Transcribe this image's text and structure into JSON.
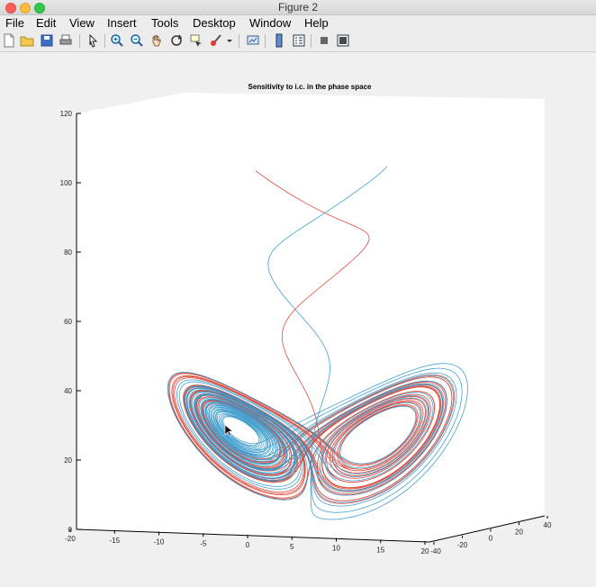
{
  "window": {
    "title": "Figure 2"
  },
  "menu": [
    "File",
    "Edit",
    "View",
    "Insert",
    "Tools",
    "Desktop",
    "Window",
    "Help"
  ],
  "toolbar": [
    "new-figure-icon",
    "open-folder-icon",
    "save-icon",
    "print-icon",
    "pointer-icon",
    "zoom-in-icon",
    "zoom-out-icon",
    "pan-hand-icon",
    "rotate-3d-icon",
    "data-cursor-icon",
    "brush-icon",
    "dropdown-arrow-icon",
    "link-plot-icon",
    "colorbar-icon",
    "legend-icon",
    "hide-plot-tools-icon",
    "show-plot-tools-icon"
  ],
  "chart_data": {
    "type": "line",
    "title": "Sensitivity to i.c. in the phase space",
    "z_ticks": [
      "0",
      "20",
      "40",
      "60",
      "80",
      "100",
      "120"
    ],
    "x_ticks": [
      "-20",
      "-15",
      "-10",
      "-5",
      "0",
      "5",
      "10",
      "15",
      "20"
    ],
    "y_ticks": [
      "-40",
      "-20",
      "0",
      "20",
      "40"
    ],
    "xlim": [
      -20,
      20
    ],
    "ylim": [
      -40,
      40
    ],
    "zlim": [
      0,
      120
    ],
    "grid": false,
    "series": [
      {
        "color": "#d9382a"
      },
      {
        "color": "#2f95c9"
      }
    ]
  }
}
